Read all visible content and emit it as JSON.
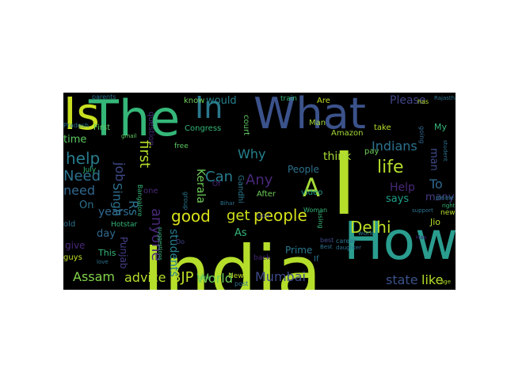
{
  "colors": {
    "background": "#000000",
    "page": "#ffffff"
  },
  "words": [
    {
      "text": "India",
      "color": "#b5de2b"
    },
    {
      "text": "Indian",
      "color": "#482878"
    },
    {
      "text": "What",
      "color": "#3b528b"
    },
    {
      "text": "I",
      "color": "#b5de2b"
    },
    {
      "text": "The",
      "color": "#35b779"
    },
    {
      "text": "How",
      "color": "#2a9d8f"
    },
    {
      "text": "Is",
      "color": "#c8e020"
    },
    {
      "text": "In",
      "color": "#2a788e"
    },
    {
      "text": "A",
      "color": "#a5db36"
    },
    {
      "text": "people",
      "color": "#d6e21a"
    },
    {
      "text": "Delhi",
      "color": "#bddf26"
    },
    {
      "text": "get",
      "color": "#d0e11c"
    },
    {
      "text": "Mumbai",
      "color": "#3e4a89"
    },
    {
      "text": "World",
      "color": "#6ece58"
    },
    {
      "text": "BJP",
      "color": "#bddf26"
    },
    {
      "text": "advice",
      "color": "#b5de2b"
    },
    {
      "text": "Assam",
      "color": "#84d44b"
    },
    {
      "text": "state",
      "color": "#3b528b"
    },
    {
      "text": "like",
      "color": "#b5de2b"
    },
    {
      "text": "good",
      "color": "#d8e219"
    },
    {
      "text": "help",
      "color": "#287d8e"
    },
    {
      "text": "Need",
      "color": "#2c728e"
    },
    {
      "text": "need",
      "color": "#31688e"
    },
    {
      "text": "job",
      "color": "#3e4a89"
    },
    {
      "text": "first",
      "color": "#b5de2b"
    },
    {
      "text": "Singh",
      "color": "#2c728e"
    },
    {
      "text": "anyone",
      "color": "#482878"
    },
    {
      "text": "Rs",
      "color": "#2c728e"
    },
    {
      "text": "years",
      "color": "#31688e"
    },
    {
      "text": "students",
      "color": "#287d8e"
    },
    {
      "text": "Can",
      "color": "#287d8e"
    },
    {
      "text": "Any",
      "color": "#482878"
    },
    {
      "text": "Why",
      "color": "#26828e"
    },
    {
      "text": "Kerala",
      "color": "#6ece58"
    },
    {
      "text": "life",
      "color": "#b5de2b"
    },
    {
      "text": "Indians",
      "color": "#2c728e"
    },
    {
      "text": "Help",
      "color": "#482878"
    },
    {
      "text": "To",
      "color": "#31688e"
    },
    {
      "text": "many",
      "color": "#433e85"
    },
    {
      "text": "man",
      "color": "#3e4a89"
    },
    {
      "text": "says",
      "color": "#1f9e89"
    },
    {
      "text": "would",
      "color": "#26828e"
    },
    {
      "text": "Please",
      "color": "#414487"
    },
    {
      "text": "think",
      "color": "#a5db36"
    },
    {
      "text": "People",
      "color": "#2c728e"
    },
    {
      "text": "time",
      "color": "#5ec962"
    },
    {
      "text": "On",
      "color": "#2c728e"
    },
    {
      "text": "day",
      "color": "#31688e"
    },
    {
      "text": "give",
      "color": "#482878"
    },
    {
      "text": "Punjab",
      "color": "#433e85"
    },
    {
      "text": "As",
      "color": "#35b779"
    },
    {
      "text": "Prime",
      "color": "#2a788e"
    },
    {
      "text": "Jio",
      "color": "#b5de2b"
    },
    {
      "text": "This",
      "color": "#35b779"
    },
    {
      "text": "know",
      "color": "#6ece58"
    },
    {
      "text": "court",
      "color": "#5ec962"
    },
    {
      "text": "Congress",
      "color": "#35b779"
    },
    {
      "text": "question",
      "color": "#482878"
    },
    {
      "text": "Amazon",
      "color": "#a5db36"
    },
    {
      "text": "video",
      "color": "#1f9e89"
    },
    {
      "text": "Gandhi",
      "color": "#2a788e"
    },
    {
      "text": "After",
      "color": "#6ece58"
    },
    {
      "text": "Man",
      "color": "#a5db36"
    },
    {
      "text": "take",
      "color": "#b5de2b"
    },
    {
      "text": "pay",
      "color": "#6ece58"
    },
    {
      "text": "My",
      "color": "#35b779"
    },
    {
      "text": "old",
      "color": "#2c728e"
    },
    {
      "text": "guys",
      "color": "#bddf26"
    },
    {
      "text": "train",
      "color": "#35b779"
    },
    {
      "text": "First",
      "color": "#5ec962"
    },
    {
      "text": "Are",
      "color": "#bddf26"
    },
    {
      "text": "new",
      "color": "#b5de2b"
    },
    {
      "text": "If",
      "color": "#2c728e"
    },
    {
      "text": "Hotstar",
      "color": "#35b779"
    },
    {
      "text": "parents",
      "color": "#2c728e"
    },
    {
      "text": "Do",
      "color": "#414487"
    },
    {
      "text": "back",
      "color": "#482878"
    },
    {
      "text": "free",
      "color": "#5ec962"
    },
    {
      "text": "one",
      "color": "#482878"
    },
    {
      "text": "Bangalore",
      "color": "#35b779"
    },
    {
      "text": "Goa",
      "color": "#414487"
    },
    {
      "text": "Woman",
      "color": "#35b779"
    },
    {
      "text": "career",
      "color": "#2c728e"
    },
    {
      "text": "Rajasthan",
      "color": "#2c728e"
    },
    {
      "text": "going",
      "color": "#31688e"
    },
    {
      "text": "student",
      "color": "#2c728e"
    },
    {
      "text": "please",
      "color": "#2a788e"
    },
    {
      "text": "right",
      "color": "#35b779"
    },
    {
      "text": "Pradesh",
      "color": "#2c728e"
    },
    {
      "text": "July",
      "color": "#35b779"
    },
    {
      "text": "group",
      "color": "#2a788e"
    },
    {
      "text": "suggestions",
      "color": "#35b779"
    },
    {
      "text": "New",
      "color": "#bddf26"
    },
    {
      "text": "post",
      "color": "#2c728e"
    },
    {
      "text": "best",
      "color": "#3e4a89"
    },
    {
      "text": "use",
      "color": "#5ec962"
    },
    {
      "text": "Best",
      "color": "#2c728e"
    },
    {
      "text": "Of",
      "color": "#482878"
    },
    {
      "text": "support",
      "color": "#2c728e"
    },
    {
      "text": "gmail",
      "color": "#5ec962"
    },
    {
      "text": "Bihar",
      "color": "#2c728e"
    },
    {
      "text": "daughter",
      "color": "#2c728e"
    },
    {
      "text": "using",
      "color": "#35b779"
    },
    {
      "text": "has",
      "color": "#b5de2b"
    },
    {
      "text": "work",
      "color": "#2a788e"
    },
    {
      "text": "Has",
      "color": "#482878"
    },
    {
      "text": "love",
      "color": "#2c728e"
    },
    {
      "text": "age",
      "color": "#b5de2b"
    }
  ]
}
